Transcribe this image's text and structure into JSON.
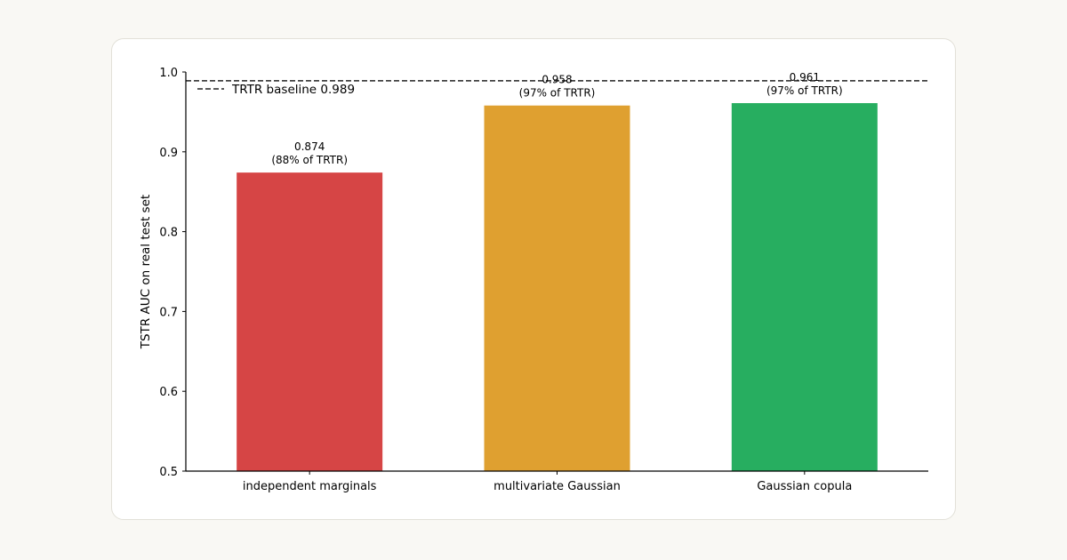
{
  "chart_data": {
    "type": "bar",
    "title": "",
    "xlabel": "",
    "ylabel": "TSTR AUC on real test set",
    "categories": [
      "independent marginals",
      "multivariate Gaussian",
      "Gaussian copula"
    ],
    "values": [
      0.874,
      0.958,
      0.961
    ],
    "bar_labels": [
      [
        "0.874",
        "(88% of TRTR)"
      ],
      [
        "0.958",
        "(97% of TRTR)"
      ],
      [
        "0.961",
        "(97% of TRTR)"
      ]
    ],
    "colors": [
      "#d64545",
      "#dfa030",
      "#27ae60"
    ],
    "ylim": [
      0.5,
      1.0
    ],
    "yticks": [
      "0.5",
      "0.6",
      "0.7",
      "0.8",
      "0.9",
      "1.0"
    ],
    "baseline": {
      "value": 0.989,
      "label": "TRTR baseline 0.989",
      "style": "dashed"
    },
    "legend_position": "top-left",
    "grid": false
  }
}
